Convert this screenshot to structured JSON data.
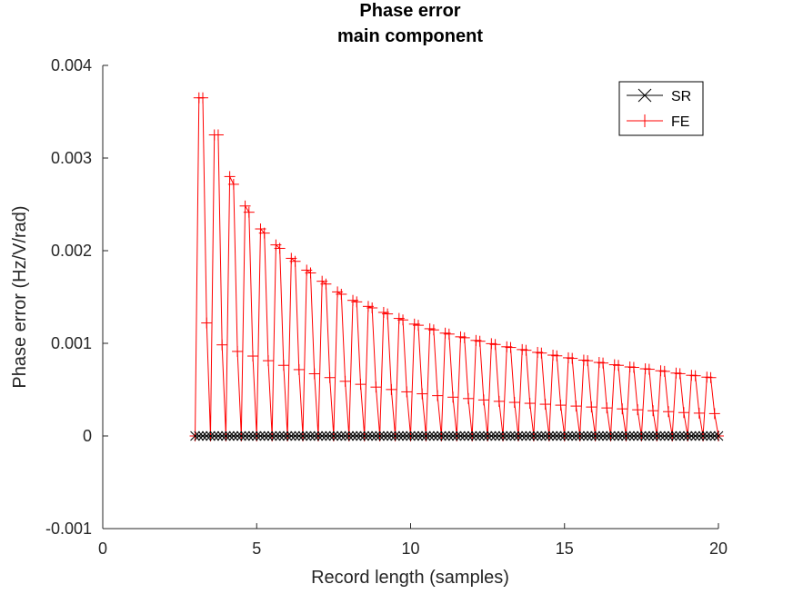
{
  "chart_data": {
    "type": "line",
    "title": "Phase error",
    "subtitle": "main component",
    "xlabel": "Record length (samples)",
    "ylabel": "Phase error (Hz/V/rad)",
    "xlim": [
      0,
      20
    ],
    "ylim": [
      -0.001,
      0.004
    ],
    "xticks": [
      0,
      5,
      10,
      15,
      20
    ],
    "yticks": [
      -0.001,
      0,
      0.001,
      0.002,
      0.003,
      0.004
    ],
    "xtick_labels": [
      "0",
      "5",
      "10",
      "15",
      "20"
    ],
    "ytick_labels": [
      "-0.001",
      "0",
      "0.001",
      "0.002",
      "0.003",
      "0.004"
    ],
    "grid": false,
    "legend_position": "top-right",
    "x_range_of_data": [
      3,
      20
    ],
    "samples_per_unit": 8,
    "series": [
      {
        "name": "SR",
        "color": "#000000",
        "marker": "x",
        "value": 0
      },
      {
        "name": "FE",
        "color": "#ff0000",
        "marker": "+",
        "pattern": "sawtooth peaks every 0.25 samples, minima at 0",
        "upper_envelope_x": [
          3.125,
          3.375,
          3.625,
          3.875,
          4.125,
          4.5,
          5,
          5.5,
          6,
          6.5,
          7,
          7.5,
          8,
          9,
          10,
          11,
          12,
          13,
          14,
          15,
          16,
          17,
          18,
          19,
          20
        ],
        "upper_envelope_y": [
          0.00365,
          0.00365,
          0.00325,
          0.00325,
          0.0028,
          0.00255,
          0.00228,
          0.0021,
          0.00195,
          0.00182,
          0.0017,
          0.00158,
          0.00148,
          0.00135,
          0.00122,
          0.00112,
          0.00104,
          0.00097,
          0.00091,
          0.00085,
          0.0008,
          0.00075,
          0.00071,
          0.00066,
          0.00062
        ],
        "lower_envelope_x": [
          3.125,
          3.375,
          3.625,
          4,
          4.5,
          5,
          6,
          7,
          8,
          9,
          10,
          11,
          12,
          13,
          14,
          15,
          16,
          17,
          18,
          19,
          20
        ],
        "lower_envelope_y": [
          0.0015,
          0.00122,
          0.00105,
          0.00095,
          0.0009,
          0.00085,
          0.00075,
          0.00066,
          0.00058,
          0.00052,
          0.00047,
          0.00043,
          0.0004,
          0.00037,
          0.00035,
          0.00033,
          0.00031,
          0.00029,
          0.00027,
          0.00025,
          0.00024
        ]
      }
    ]
  }
}
